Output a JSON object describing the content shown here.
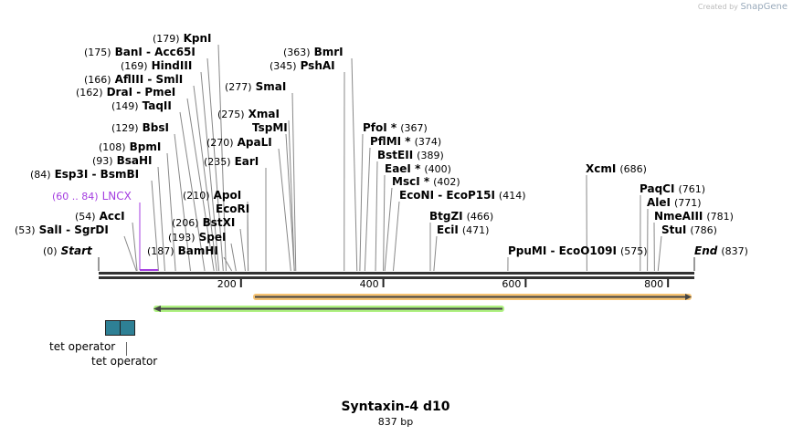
{
  "credit": {
    "prefix": "Created by",
    "brand": "SnapGene"
  },
  "sequence": {
    "name": "Syntaxin-4 d10",
    "length_label": "837 bp",
    "length": 837
  },
  "ticks": [
    {
      "bp": 200,
      "label": "200"
    },
    {
      "bp": 400,
      "label": "400"
    },
    {
      "bp": 600,
      "label": "600"
    },
    {
      "bp": 800,
      "label": "800"
    }
  ],
  "sites": [
    {
      "pos": "(179)",
      "name": "KpnI",
      "bp": 179
    },
    {
      "pos": "(175)",
      "name": "BanI  - Acc65I",
      "bp": 175
    },
    {
      "pos": "(169)",
      "name": "HindIII",
      "bp": 169
    },
    {
      "pos": "(166)",
      "name": "AflIII  - SmlI",
      "bp": 166
    },
    {
      "pos": "(162)",
      "name": "DraI  - PmeI",
      "bp": 162
    },
    {
      "pos": "(149)",
      "name": "TaqII",
      "bp": 149
    },
    {
      "pos": "(129)",
      "name": "BbsI",
      "bp": 129
    },
    {
      "pos": "(108)",
      "name": "BpmI",
      "bp": 108
    },
    {
      "pos": "(93)",
      "name": "BsaHI",
      "bp": 93
    },
    {
      "pos": "(84)",
      "name": "Esp3I  - BsmBI",
      "bp": 84
    },
    {
      "pos": "(54)",
      "name": "AccI",
      "bp": 54
    },
    {
      "pos": "(53)",
      "name": "SalI  - SgrDI",
      "bp": 53
    },
    {
      "pos": "(0)",
      "name": "Start",
      "bp": 0
    },
    {
      "pos": "(187)",
      "name": "BamHI",
      "bp": 187
    },
    {
      "pos": "(193)",
      "name": "SpeI",
      "bp": 193
    },
    {
      "pos": "(206)",
      "name": "BstXI",
      "bp": 206
    },
    {
      "pos": "",
      "name": "EcoRI",
      "bp": 210
    },
    {
      "pos": "(210)",
      "name": "ApoI",
      "bp": 210
    },
    {
      "pos": "(235)",
      "name": "EarI",
      "bp": 235
    },
    {
      "pos": "(270)",
      "name": "ApaLI",
      "bp": 270
    },
    {
      "pos": "",
      "name": "TspMI",
      "bp": 275
    },
    {
      "pos": "(275)",
      "name": "XmaI",
      "bp": 275
    },
    {
      "pos": "(277)",
      "name": "SmaI",
      "bp": 277
    },
    {
      "pos": "(345)",
      "name": "PshAI",
      "bp": 345
    },
    {
      "pos": "(363)",
      "name": "BmrI",
      "bp": 363
    },
    {
      "pos": "(367)",
      "name": "PfoI *",
      "bp": 367
    },
    {
      "pos": "(374)",
      "name": "PflMI *",
      "bp": 374
    },
    {
      "pos": "(389)",
      "name": "BstEII",
      "bp": 389
    },
    {
      "pos": "(400)",
      "name": "EaeI *",
      "bp": 400
    },
    {
      "pos": "(402)",
      "name": "MscI *",
      "bp": 402
    },
    {
      "pos": "(414)",
      "name": "EcoNI  - EcoP15I",
      "bp": 414
    },
    {
      "pos": "(466)",
      "name": "BtgZI",
      "bp": 466
    },
    {
      "pos": "(471)",
      "name": "EciI",
      "bp": 471
    },
    {
      "pos": "(575)",
      "name": "PpuMI  - EcoO109I",
      "bp": 575
    },
    {
      "pos": "(686)",
      "name": "XcmI",
      "bp": 686
    },
    {
      "pos": "(761)",
      "name": "PaqCI",
      "bp": 761
    },
    {
      "pos": "(771)",
      "name": "AleI",
      "bp": 771
    },
    {
      "pos": "(781)",
      "name": "NmeAIII",
      "bp": 781
    },
    {
      "pos": "(786)",
      "name": "StuI",
      "bp": 786
    },
    {
      "pos": "(837)",
      "name": "End",
      "bp": 837
    }
  ],
  "features": [
    {
      "pos": "(60 .. 84)",
      "name": "LNCX",
      "start": 60,
      "end": 84,
      "color": "#a43de0"
    },
    {
      "name": "tet operator",
      "start": 10,
      "end": 30,
      "color": "#2e8095"
    },
    {
      "name": "tet operator",
      "start": 30,
      "end": 50,
      "color": "#2e8095"
    }
  ],
  "orfs": [
    {
      "direction": "forward",
      "color": "#f5b85a"
    },
    {
      "direction": "reverse",
      "color": "#a6ef74"
    }
  ]
}
